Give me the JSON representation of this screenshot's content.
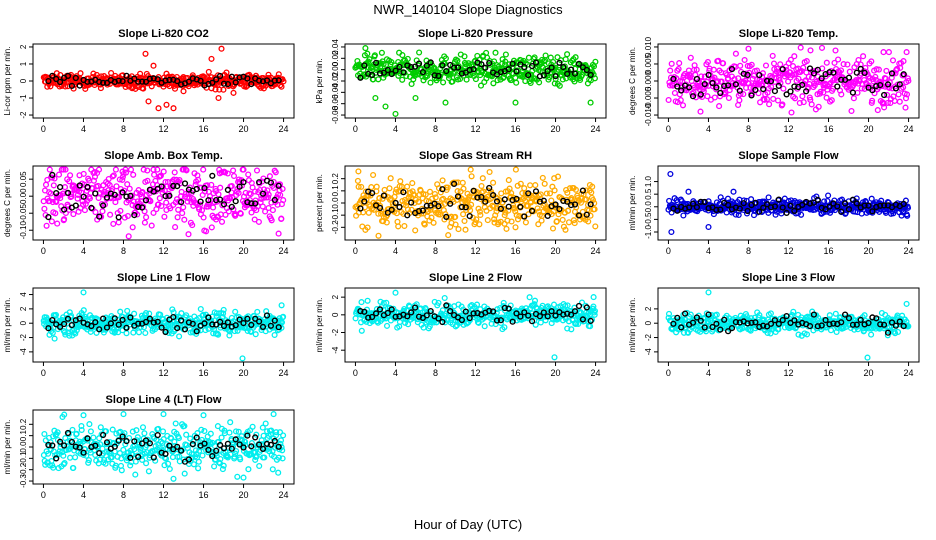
{
  "figure": {
    "title": "NWR_140104  Slope Diagnostics",
    "xlabel": "Hour of Day (UTC)"
  },
  "chart_data": [
    {
      "type": "scatter",
      "title": "Slope Li-820 CO2",
      "ylabel": "Li-cor ppm per min.",
      "xlim": [
        0,
        24
      ],
      "ylim": [
        -2,
        2
      ],
      "yticks": [
        "-2",
        "-1",
        "0",
        "1",
        "2"
      ],
      "xticks": [
        "0",
        "4",
        "8",
        "12",
        "16",
        "20",
        "24"
      ],
      "color": "#ff0000",
      "spread": 0.2,
      "outliers": [
        [
          10.2,
          1.6
        ],
        [
          10.5,
          -1.2
        ],
        [
          11.0,
          0.9
        ],
        [
          11.5,
          -1.6
        ],
        [
          12.3,
          -1.4
        ],
        [
          13.0,
          -1.6
        ],
        [
          14.0,
          -0.6
        ],
        [
          16.8,
          1.3
        ],
        [
          17.2,
          -0.5
        ],
        [
          17.5,
          -1.0
        ],
        [
          17.8,
          1.9
        ],
        [
          18.3,
          0.5
        ],
        [
          19.0,
          -0.7
        ],
        [
          20.5,
          0.3
        ]
      ],
      "grid": false
    },
    {
      "type": "scatter",
      "title": "Slope Li-820 Pressure",
      "ylabel": "kPa per min.",
      "xlim": [
        0,
        24
      ],
      "ylim": [
        -0.08,
        0.04
      ],
      "yticks": [
        "-0.08",
        "-0.06",
        "-0.04",
        "-0.02",
        "0.00",
        "0.02",
        "0.04"
      ],
      "xticks": [
        "0",
        "4",
        "8",
        "12",
        "16",
        "20",
        "24"
      ],
      "color": "#00cc00",
      "spread": 0.012,
      "outliers": [
        [
          1.0,
          0.038
        ],
        [
          2.0,
          -0.05
        ],
        [
          3.0,
          -0.065
        ],
        [
          4.0,
          -0.078
        ],
        [
          6.0,
          -0.05
        ],
        [
          9.0,
          -0.058
        ],
        [
          16.0,
          -0.058
        ],
        [
          23.5,
          -0.058
        ]
      ],
      "grid": false
    },
    {
      "type": "scatter",
      "title": "Slope Li-820 Temp.",
      "ylabel": "degrees C per min.",
      "xlim": [
        0,
        24
      ],
      "ylim": [
        -0.01,
        0.01
      ],
      "yticks": [
        "-0.010",
        "-0.005",
        "0.000",
        "0.005",
        "0.010"
      ],
      "xticks": [
        "0",
        "4",
        "8",
        "12",
        "16",
        "20",
        "24"
      ],
      "color": "#ff00ff",
      "spread": 0.0035,
      "outliers": [
        [
          3.2,
          -0.009
        ],
        [
          8.0,
          0.0095
        ],
        [
          14.2,
          0.009
        ],
        [
          21.5,
          0.0085
        ],
        [
          23.8,
          0.0085
        ]
      ],
      "grid": false
    },
    {
      "type": "scatter",
      "title": "Slope Amb. Box Temp.",
      "ylabel": "degrees C per min.",
      "xlim": [
        0,
        24
      ],
      "ylim": [
        -0.12,
        0.08
      ],
      "yticks": [
        "-0.10",
        "-0.05",
        "0.00",
        "0.05"
      ],
      "xticks": [
        "0",
        "4",
        "8",
        "12",
        "16",
        "20",
        "24"
      ],
      "color": "#ff00ff",
      "spread": 0.045,
      "outliers": [
        [
          2.0,
          0.08
        ],
        [
          11.0,
          0.08
        ],
        [
          20.0,
          0.08
        ],
        [
          23.5,
          -0.11
        ]
      ],
      "grid": false
    },
    {
      "type": "scatter",
      "title": "Slope Gas Stream RH",
      "ylabel": "percent per min.",
      "xlim": [
        0,
        24
      ],
      "ylim": [
        -0.28,
        0.28
      ],
      "yticks": [
        "-0.2",
        "-0.1",
        "0.0",
        "0.1",
        "0.2"
      ],
      "xticks": [
        "0",
        "4",
        "8",
        "12",
        "16",
        "20",
        "24"
      ],
      "color": "#ffaa00",
      "spread": 0.1,
      "outliers": [
        [
          0.3,
          0.26
        ],
        [
          2.3,
          -0.27
        ],
        [
          11.0,
          -0.22
        ],
        [
          16.0,
          -0.2
        ]
      ],
      "grid": false
    },
    {
      "type": "scatter",
      "title": "Slope Sample Flow",
      "ylabel": "ml/min per min.",
      "xlim": [
        0,
        24
      ],
      "ylim": [
        -1.2,
        1.5
      ],
      "yticks": [
        "-1.0",
        "-0.5",
        "0.0",
        "0.5",
        "1.0"
      ],
      "xticks": [
        "0",
        "4",
        "8",
        "12",
        "16",
        "20",
        "24"
      ],
      "color": "#0000dd",
      "spread": 0.15,
      "outliers": [
        [
          0.2,
          1.3
        ],
        [
          0.3,
          -1.0
        ],
        [
          4.0,
          -0.8
        ],
        [
          2.0,
          0.6
        ],
        [
          6.5,
          0.6
        ]
      ],
      "grid": false
    },
    {
      "type": "scatter",
      "title": "Slope Line 1 Flow",
      "ylabel": "ml/min per min.",
      "xlim": [
        0,
        24
      ],
      "ylim": [
        -5,
        4.5
      ],
      "yticks": [
        "-4",
        "-2",
        "0",
        "2",
        "4"
      ],
      "xticks": [
        "0",
        "4",
        "8",
        "12",
        "16",
        "20",
        "24"
      ],
      "color": "#00eeee",
      "spread": 0.8,
      "outliers": [
        [
          4.0,
          4.3
        ],
        [
          19.9,
          -5.0
        ],
        [
          23.8,
          2.5
        ]
      ],
      "grid": false
    },
    {
      "type": "scatter",
      "title": "Slope Line 2 Flow",
      "ylabel": "ml/min per min.",
      "xlim": [
        0,
        24
      ],
      "ylim": [
        -5,
        2.7
      ],
      "yticks": [
        "-4",
        "-2",
        "0",
        "2"
      ],
      "xticks": [
        "0",
        "4",
        "8",
        "12",
        "16",
        "20",
        "24"
      ],
      "color": "#00eeee",
      "spread": 0.65,
      "outliers": [
        [
          4.0,
          2.5
        ],
        [
          19.9,
          -4.8
        ],
        [
          23.8,
          2.0
        ]
      ],
      "grid": false
    },
    {
      "type": "scatter",
      "title": "Slope Line 3 Flow",
      "ylabel": "ml/min per min.",
      "xlim": [
        0,
        24
      ],
      "ylim": [
        -5,
        4.5
      ],
      "yticks": [
        "-4",
        "-2",
        "0",
        "2"
      ],
      "xticks": [
        "0",
        "4",
        "8",
        "12",
        "16",
        "20",
        "24"
      ],
      "color": "#00eeee",
      "spread": 0.7,
      "outliers": [
        [
          4.0,
          4.3
        ],
        [
          19.9,
          -4.8
        ],
        [
          23.8,
          2.7
        ]
      ],
      "grid": false
    },
    {
      "type": "scatter",
      "title": "Slope Line 4 (LT) Flow",
      "ylabel": "ml/min per min.",
      "xlim": [
        0,
        24
      ],
      "ylim": [
        -0.3,
        0.3
      ],
      "yticks": [
        "-0.3",
        "-0.2",
        "-0.1",
        "0.0",
        "0.1",
        "0.2"
      ],
      "xticks": [
        "0",
        "4",
        "8",
        "12",
        "16",
        "20",
        "24"
      ],
      "color": "#00eeee",
      "spread": 0.1,
      "outliers": [
        [
          4.0,
          0.28
        ],
        [
          8.0,
          0.29
        ],
        [
          12.0,
          0.29
        ],
        [
          13.0,
          -0.28
        ],
        [
          16.0,
          0.28
        ],
        [
          23.0,
          0.29
        ],
        [
          20.0,
          -0.27
        ]
      ],
      "grid": false
    }
  ]
}
